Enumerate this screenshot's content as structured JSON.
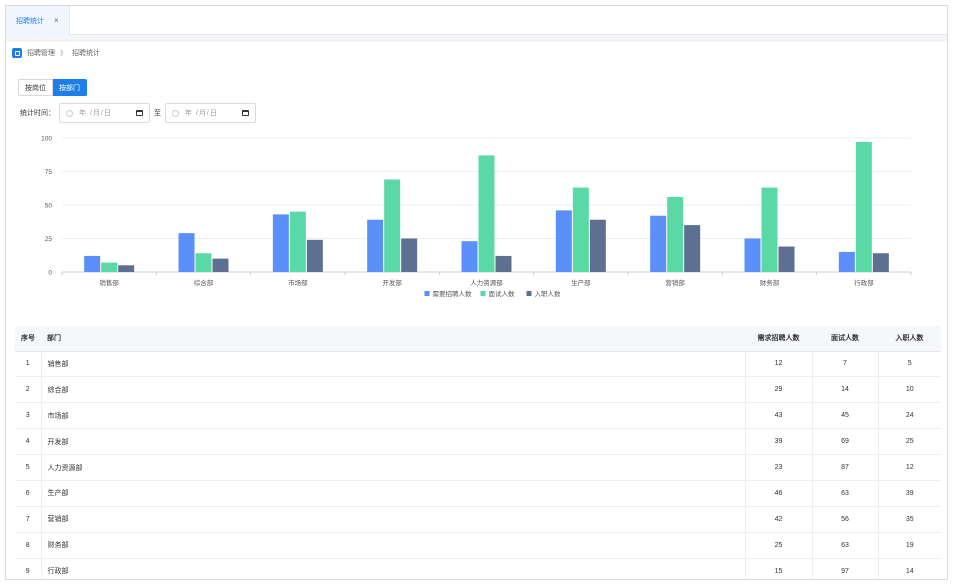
{
  "tab": {
    "label": "招聘统计",
    "close": "×"
  },
  "breadcrumb": {
    "parent": "招聘管理",
    "separator": "》",
    "current": "招聘统计"
  },
  "view_toggle": {
    "by_position": "按岗位",
    "by_department": "按部门",
    "active": "by_department"
  },
  "filter": {
    "label": "统计时间：",
    "start_placeholder": "年 /月/日",
    "to": "至",
    "end_placeholder": "年 /月/日"
  },
  "colors": {
    "accent": "#1e7ee8",
    "series_demand": "#5b8ff9",
    "series_interview": "#5ad8a6",
    "series_hired": "#5d7092"
  },
  "chart_data": {
    "type": "bar",
    "categories": [
      "销售部",
      "综合部",
      "市场部",
      "开发部",
      "人力资源部",
      "生产部",
      "营销部",
      "财务部",
      "行政部"
    ],
    "series": [
      {
        "name": "需要招聘人数",
        "values": [
          12,
          29,
          43,
          39,
          23,
          46,
          42,
          25,
          15
        ]
      },
      {
        "name": "面试人数",
        "values": [
          7,
          14,
          45,
          69,
          87,
          63,
          56,
          63,
          97
        ]
      },
      {
        "name": "入职人数",
        "values": [
          5,
          10,
          24,
          25,
          12,
          39,
          35,
          19,
          14
        ]
      }
    ],
    "yticks": [
      "0",
      "25",
      "50",
      "75",
      "100"
    ],
    "ylim": [
      0,
      100
    ],
    "grid": true,
    "legend": "bottom"
  },
  "table": {
    "headers": {
      "index": "序号",
      "department": "部门",
      "demand": "需求招聘人数",
      "interview": "面试人数",
      "hired": "入职人数"
    },
    "rows": [
      {
        "index": "1",
        "department": "销售部",
        "demand": "12",
        "interview": "7",
        "hired": "5"
      },
      {
        "index": "2",
        "department": "综合部",
        "demand": "29",
        "interview": "14",
        "hired": "10"
      },
      {
        "index": "3",
        "department": "市场部",
        "demand": "43",
        "interview": "45",
        "hired": "24"
      },
      {
        "index": "4",
        "department": "开发部",
        "demand": "39",
        "interview": "69",
        "hired": "25"
      },
      {
        "index": "5",
        "department": "人力资源部",
        "demand": "23",
        "interview": "87",
        "hired": "12"
      },
      {
        "index": "6",
        "department": "生产部",
        "demand": "46",
        "interview": "63",
        "hired": "39"
      },
      {
        "index": "7",
        "department": "营销部",
        "demand": "42",
        "interview": "56",
        "hired": "35"
      },
      {
        "index": "8",
        "department": "财务部",
        "demand": "25",
        "interview": "63",
        "hired": "19"
      },
      {
        "index": "9",
        "department": "行政部",
        "demand": "15",
        "interview": "97",
        "hired": "14"
      }
    ]
  }
}
